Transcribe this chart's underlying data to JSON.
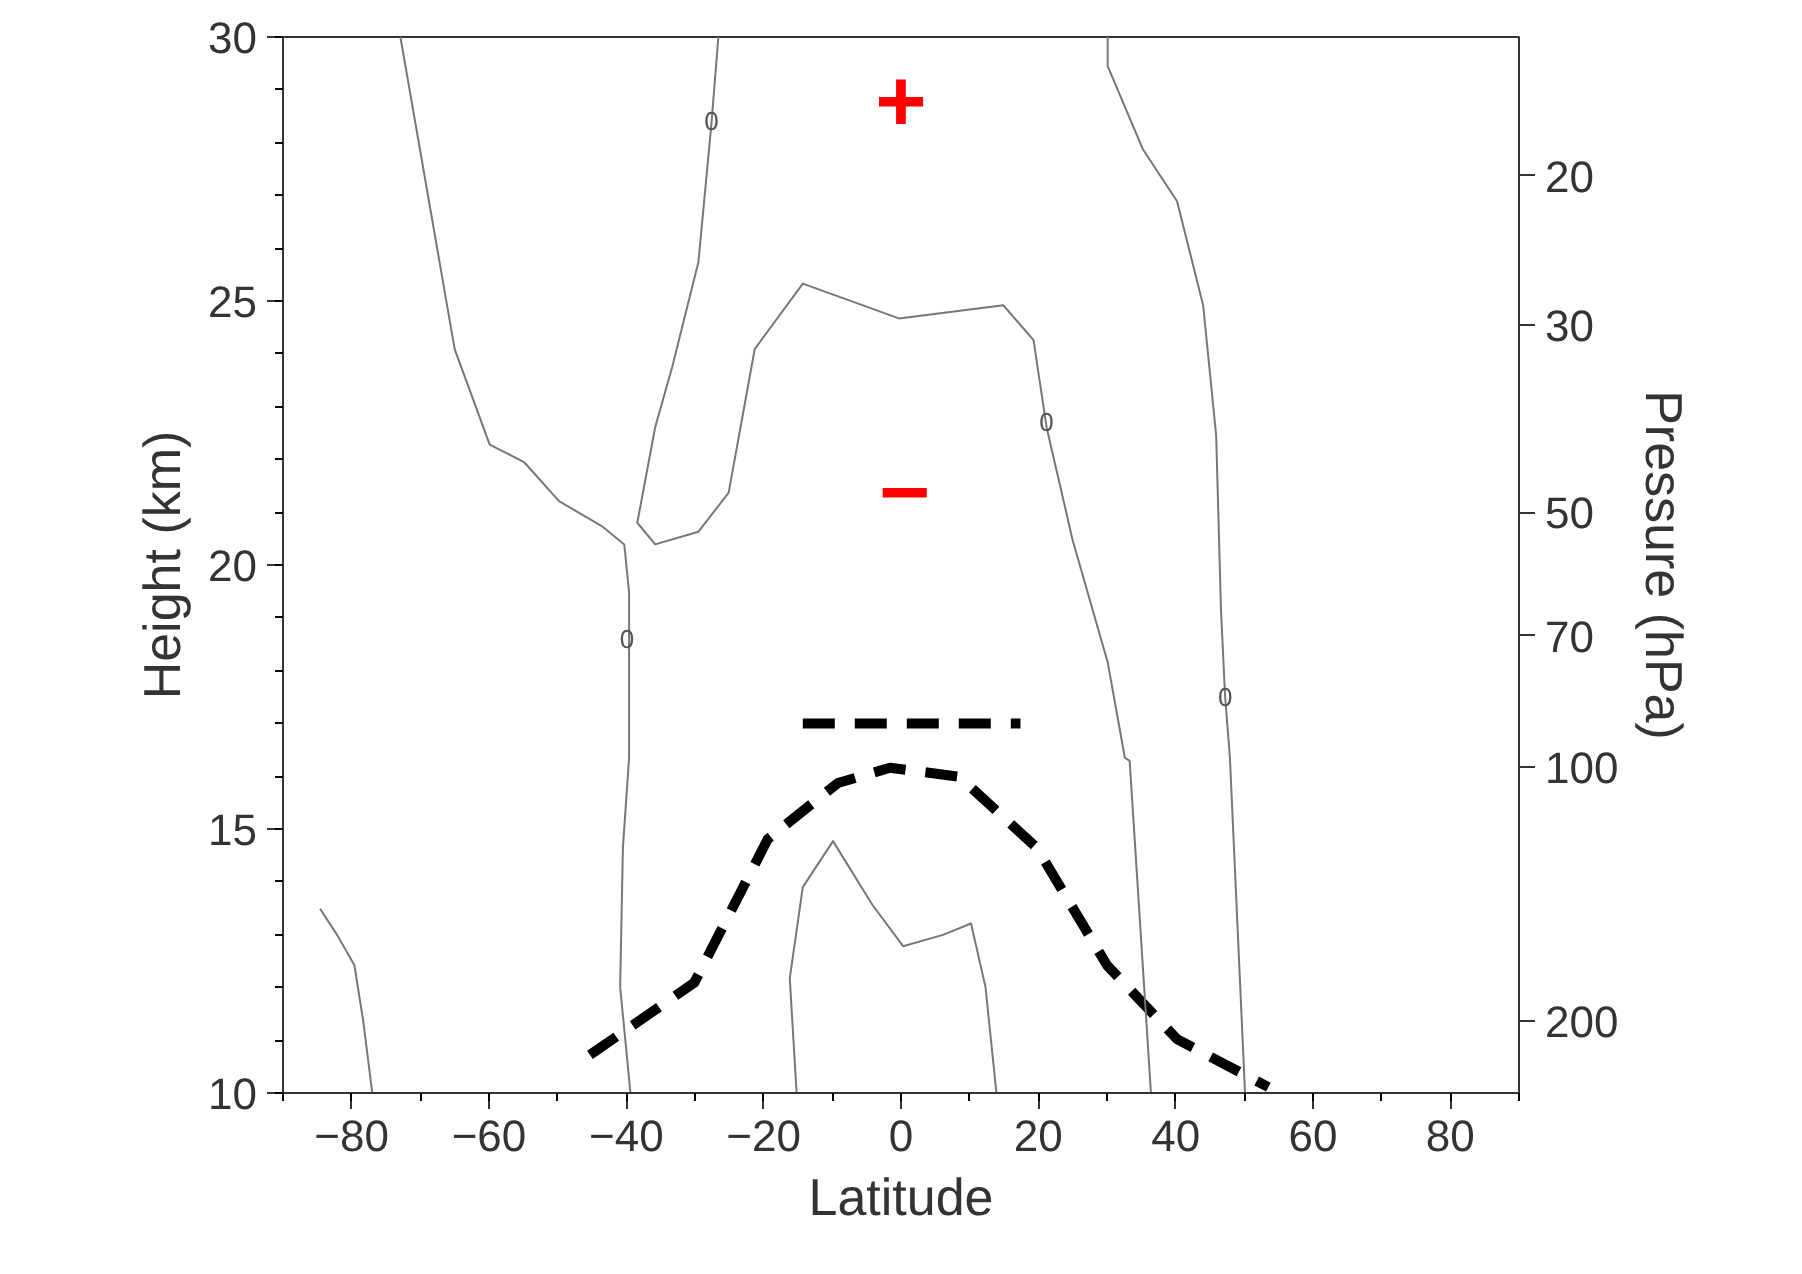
{
  "chart_data": {
    "type": "line",
    "xlabel": "Latitude",
    "ylabel": "Height (km)",
    "y2label": "Pressure (hPa)",
    "xlim": [
      -90,
      90
    ],
    "xticks": [
      {
        "value": -80,
        "label": "−80"
      },
      {
        "value": -60,
        "label": "−60"
      },
      {
        "value": -40,
        "label": "−40"
      },
      {
        "value": -20,
        "label": "−20"
      },
      0,
      20,
      40,
      60,
      80
    ],
    "ylim": [
      10,
      30
    ],
    "yticks": [
      10,
      15,
      20,
      25,
      30
    ],
    "y2lim": [
      243,
      13.7
    ],
    "y2ticks": [
      20,
      30,
      50,
      70,
      100,
      200
    ],
    "log": "y2",
    "grid": false,
    "marker": "none",
    "series": [
      {
        "color": "#000000",
        "line_style": "dashed",
        "x": [
          -45.3,
          -30.1,
          -19.4,
          -9.2,
          -1.6,
          8.5,
          19.8,
          30.0,
          40.2,
          53.5
        ],
        "values": [
          10.72,
          12.09,
          14.81,
          15.87,
          16.16,
          15.99,
          14.64,
          12.42,
          11.02,
          10.11
        ]
      },
      {
        "color": "#000000",
        "line_style": "dashed",
        "x": [
          -14.3,
          17.4
        ],
        "values": [
          17.0,
          17.0
        ]
      },
      {
        "color": "#777777",
        "line_style": "solid",
        "x": [
          -72.9,
          -65.0,
          -59.9,
          -54.9,
          -49.8,
          -43.4,
          -40.3,
          -39.6,
          -39.6,
          -40.5,
          -40.9,
          -39.4
        ],
        "values": [
          30.0,
          24.09,
          22.28,
          21.95,
          21.21,
          20.72,
          20.39,
          19.48,
          16.35,
          14.64,
          12.01,
          10.0
        ]
      },
      {
        "color": "#777777",
        "line_style": "solid",
        "x": [
          -26.6,
          -27.6,
          -29.5,
          -33.3,
          -35.8,
          -38.4,
          -35.8,
          -29.5,
          -25.1,
          -21.3,
          -14.3,
          -0.3,
          14.9,
          19.3,
          21.2,
          25.0,
          30.1,
          32.6,
          33.3,
          36.4
        ],
        "values": [
          30.0,
          28.37,
          25.74,
          23.76,
          22.61,
          20.8,
          20.39,
          20.63,
          21.37,
          24.09,
          25.33,
          24.67,
          24.92,
          24.26,
          22.61,
          20.47,
          18.16,
          16.35,
          16.29,
          10.0
        ]
      },
      {
        "color": "#777777",
        "line_style": "solid",
        "x": [
          30.1,
          30.1,
          35.2,
          40.2,
          44.0,
          45.9,
          46.6,
          47.2,
          47.9,
          50.1
        ],
        "values": [
          30.0,
          29.45,
          27.88,
          26.89,
          24.92,
          22.45,
          19.15,
          17.51,
          16.35,
          10.0
        ]
      },
      {
        "color": "#777777",
        "line_style": "solid",
        "x": [
          -84.6,
          -82.1,
          -79.6,
          -78.3,
          -77.0
        ],
        "values": [
          13.49,
          12.99,
          12.42,
          11.35,
          10.0
        ]
      },
      {
        "color": "#777777",
        "line_style": "solid",
        "x": [
          -15.2,
          -16.2,
          -14.3,
          -9.9,
          -4.2,
          0.3,
          6.0,
          10.2,
          12.3,
          13.9
        ],
        "values": [
          10.0,
          12.17,
          13.9,
          14.77,
          13.57,
          12.78,
          12.99,
          13.21,
          12.01,
          10.0
        ]
      }
    ],
    "annotations": [
      "+",
      "−",
      {
        "text": "0",
        "x": -27.6,
        "y": 28.4
      },
      {
        "text": "0",
        "x": -39.9,
        "y": 18.6
      },
      {
        "text": "0",
        "x": 21.2,
        "y": 22.7
      },
      {
        "text": "0",
        "x": 47.2,
        "y": 17.5
      }
    ]
  }
}
